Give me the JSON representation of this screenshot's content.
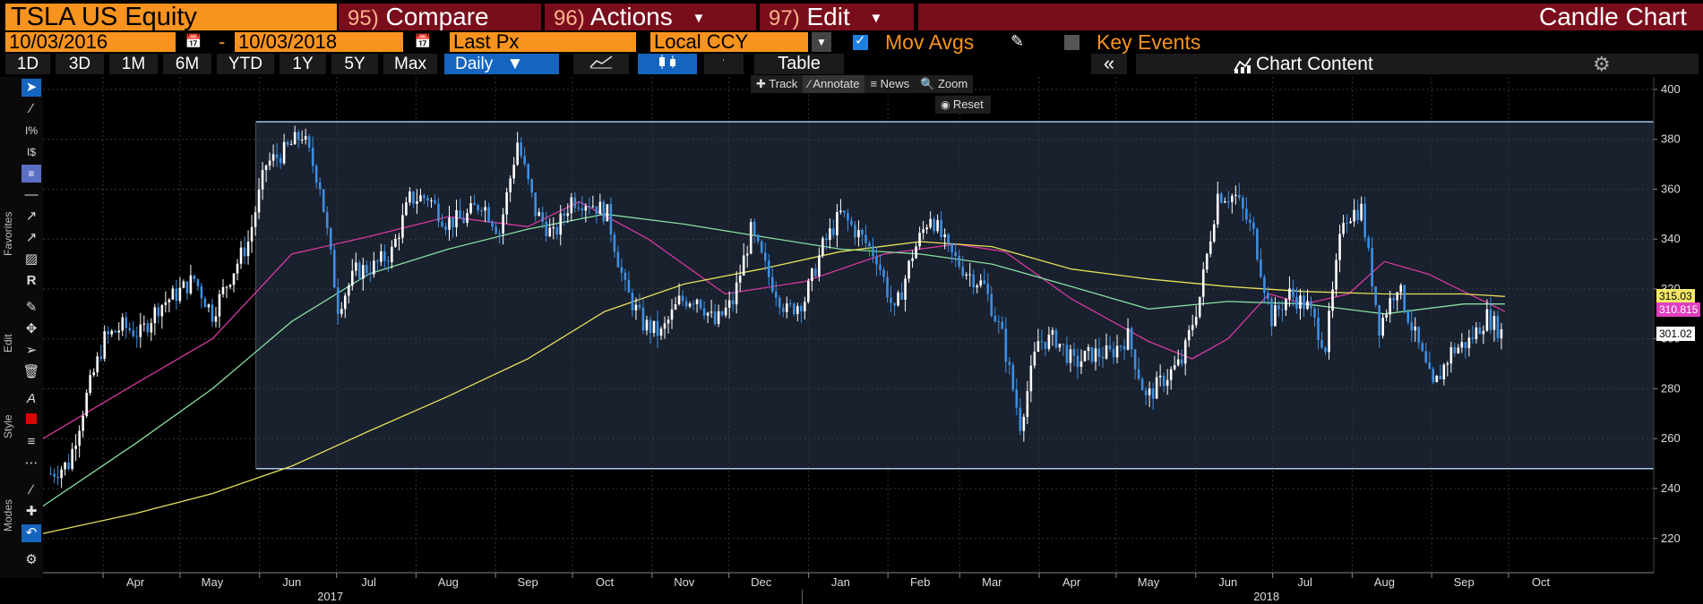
{
  "header": {
    "ticker": "TSLA US Equity",
    "compare_num": "95)",
    "compare_label": "Compare",
    "actions_num": "96)",
    "actions_label": "Actions",
    "edit_num": "97)",
    "edit_label": "Edit",
    "chart_type": "Candle Chart"
  },
  "controls": {
    "start_date": "10/03/2016",
    "date_separator": "-",
    "end_date": "10/03/2018",
    "field": "Last Px",
    "currency": "Local CCY",
    "mov_avgs_label": "Mov Avgs",
    "mov_avgs_checked": true,
    "key_events_label": "Key Events",
    "key_events_checked": false
  },
  "periods": [
    "1D",
    "3D",
    "1M",
    "6M",
    "YTD",
    "1Y",
    "5Y",
    "Max"
  ],
  "frequency": "Daily",
  "table_label": "Table",
  "chart_content_label": "Chart Content",
  "mini_toolbar": {
    "track": "Track",
    "annotate": "Annotate",
    "news": "News",
    "zoom": "Zoom",
    "reset": "Reset"
  },
  "left_toolbar": {
    "groups": [
      "Favorites",
      "Edit",
      "Style",
      "Modes"
    ]
  },
  "price_tags": {
    "ma_top": "315.03",
    "ma_magenta": "310.815",
    "last": "301.02"
  },
  "colors": {
    "orange": "#f7931e",
    "title_red": "#7a0d1c",
    "active_blue": "#1565c0",
    "up_candle": "#ffffff",
    "down_candle": "#3d8fe0",
    "ma_short": "#d63aa0",
    "ma_mid": "#86e0a0",
    "ma_long": "#e6e05a",
    "channel": "#a8c4ec",
    "yellow_tag": "#f2e86a",
    "magenta_tag": "#e040c0"
  },
  "chart_data": {
    "type": "candlestick",
    "title": "",
    "xlabel": "",
    "ylabel": "",
    "ylim": [
      207,
      405
    ],
    "y_ticks": [
      220,
      240,
      260,
      280,
      300,
      320,
      340,
      360,
      380,
      400
    ],
    "x_range": [
      "2017-03-10",
      "2018-11-28"
    ],
    "x_ticks": [
      {
        "date": "2017-04-15",
        "label": "Apr"
      },
      {
        "date": "2017-05-15",
        "label": "May"
      },
      {
        "date": "2017-06-15",
        "label": "Jun"
      },
      {
        "date": "2017-07-15",
        "label": "Jul"
      },
      {
        "date": "2017-08-15",
        "label": "Aug"
      },
      {
        "date": "2017-09-15",
        "label": "Sep"
      },
      {
        "date": "2017-10-15",
        "label": "Oct"
      },
      {
        "date": "2017-11-15",
        "label": "Nov"
      },
      {
        "date": "2017-12-15",
        "label": "Dec"
      },
      {
        "date": "2018-01-15",
        "label": "Jan"
      },
      {
        "date": "2018-02-15",
        "label": "Feb"
      },
      {
        "date": "2018-03-15",
        "label": "Mar"
      },
      {
        "date": "2018-04-15",
        "label": "Apr"
      },
      {
        "date": "2018-05-15",
        "label": "May"
      },
      {
        "date": "2018-06-15",
        "label": "Jun"
      },
      {
        "date": "2018-07-15",
        "label": "Jul"
      },
      {
        "date": "2018-08-15",
        "label": "Aug"
      },
      {
        "date": "2018-09-15",
        "label": "Sep"
      },
      {
        "date": "2018-10-15",
        "label": "Oct"
      }
    ],
    "year_labels": [
      {
        "date": "2017-06-30",
        "label": "2017"
      },
      {
        "date": "2018-06-30",
        "label": "2018"
      }
    ],
    "grid": true,
    "channel": {
      "start": "2017-06-01",
      "end": "2018-11-28",
      "upper": 387,
      "lower": 248
    },
    "close_series": [
      {
        "date": "2017-03-13",
        "close": 246
      },
      {
        "date": "2017-03-20",
        "close": 250
      },
      {
        "date": "2017-03-27",
        "close": 277
      },
      {
        "date": "2017-04-03",
        "close": 300
      },
      {
        "date": "2017-04-10",
        "close": 305
      },
      {
        "date": "2017-04-17",
        "close": 302
      },
      {
        "date": "2017-04-24",
        "close": 313
      },
      {
        "date": "2017-05-01",
        "close": 318
      },
      {
        "date": "2017-05-08",
        "close": 324
      },
      {
        "date": "2017-05-15",
        "close": 310
      },
      {
        "date": "2017-05-22",
        "close": 325
      },
      {
        "date": "2017-05-29",
        "close": 339
      },
      {
        "date": "2017-06-05",
        "close": 370
      },
      {
        "date": "2017-06-12",
        "close": 375
      },
      {
        "date": "2017-06-19",
        "close": 382
      },
      {
        "date": "2017-06-26",
        "close": 362
      },
      {
        "date": "2017-07-03",
        "close": 313
      },
      {
        "date": "2017-07-10",
        "close": 327
      },
      {
        "date": "2017-07-17",
        "close": 329
      },
      {
        "date": "2017-07-24",
        "close": 335
      },
      {
        "date": "2017-07-31",
        "close": 356
      },
      {
        "date": "2017-08-07",
        "close": 357
      },
      {
        "date": "2017-08-14",
        "close": 347
      },
      {
        "date": "2017-08-21",
        "close": 348
      },
      {
        "date": "2017-08-28",
        "close": 355
      },
      {
        "date": "2017-09-04",
        "close": 343
      },
      {
        "date": "2017-09-11",
        "close": 379
      },
      {
        "date": "2017-09-18",
        "close": 351
      },
      {
        "date": "2017-09-25",
        "close": 341
      },
      {
        "date": "2017-10-02",
        "close": 356
      },
      {
        "date": "2017-10-09",
        "close": 355
      },
      {
        "date": "2017-10-16",
        "close": 350
      },
      {
        "date": "2017-10-23",
        "close": 320
      },
      {
        "date": "2017-10-30",
        "close": 306
      },
      {
        "date": "2017-11-06",
        "close": 302
      },
      {
        "date": "2017-11-13",
        "close": 315
      },
      {
        "date": "2017-11-20",
        "close": 317
      },
      {
        "date": "2017-11-27",
        "close": 306
      },
      {
        "date": "2017-12-04",
        "close": 315
      },
      {
        "date": "2017-12-11",
        "close": 343
      },
      {
        "date": "2017-12-18",
        "close": 325
      },
      {
        "date": "2017-12-25",
        "close": 311
      },
      {
        "date": "2018-01-01",
        "close": 316
      },
      {
        "date": "2018-01-08",
        "close": 337
      },
      {
        "date": "2018-01-15",
        "close": 350
      },
      {
        "date": "2018-01-22",
        "close": 342
      },
      {
        "date": "2018-01-29",
        "close": 333
      },
      {
        "date": "2018-02-05",
        "close": 310
      },
      {
        "date": "2018-02-12",
        "close": 334
      },
      {
        "date": "2018-02-19",
        "close": 350
      },
      {
        "date": "2018-02-26",
        "close": 335
      },
      {
        "date": "2018-03-05",
        "close": 327
      },
      {
        "date": "2018-03-12",
        "close": 321
      },
      {
        "date": "2018-03-19",
        "close": 301
      },
      {
        "date": "2018-03-26",
        "close": 266
      },
      {
        "date": "2018-04-02",
        "close": 299
      },
      {
        "date": "2018-04-09",
        "close": 300
      },
      {
        "date": "2018-04-16",
        "close": 290
      },
      {
        "date": "2018-04-23",
        "close": 294
      },
      {
        "date": "2018-04-30",
        "close": 294
      },
      {
        "date": "2018-05-07",
        "close": 301
      },
      {
        "date": "2018-05-14",
        "close": 276
      },
      {
        "date": "2018-05-21",
        "close": 284
      },
      {
        "date": "2018-05-28",
        "close": 291
      },
      {
        "date": "2018-06-04",
        "close": 317
      },
      {
        "date": "2018-06-11",
        "close": 358
      },
      {
        "date": "2018-06-18",
        "close": 357
      },
      {
        "date": "2018-06-25",
        "close": 342
      },
      {
        "date": "2018-07-02",
        "close": 308
      },
      {
        "date": "2018-07-09",
        "close": 318
      },
      {
        "date": "2018-07-16",
        "close": 313
      },
      {
        "date": "2018-07-23",
        "close": 297
      },
      {
        "date": "2018-07-30",
        "close": 349
      },
      {
        "date": "2018-08-06",
        "close": 352
      },
      {
        "date": "2018-08-13",
        "close": 305
      },
      {
        "date": "2018-08-20",
        "close": 322
      },
      {
        "date": "2018-08-27",
        "close": 301
      },
      {
        "date": "2018-09-03",
        "close": 280
      },
      {
        "date": "2018-09-10",
        "close": 295
      },
      {
        "date": "2018-09-17",
        "close": 299
      },
      {
        "date": "2018-09-24",
        "close": 309
      },
      {
        "date": "2018-10-01",
        "close": 301
      }
    ],
    "moving_averages": [
      {
        "color": "#d63aa0",
        "points": [
          {
            "date": "2017-03-10",
            "close": 260
          },
          {
            "date": "2017-04-15",
            "close": 282
          },
          {
            "date": "2017-05-15",
            "close": 300
          },
          {
            "date": "2017-06-15",
            "close": 334
          },
          {
            "date": "2017-07-15",
            "close": 341
          },
          {
            "date": "2017-08-15",
            "close": 349
          },
          {
            "date": "2017-09-15",
            "close": 345
          },
          {
            "date": "2017-10-05",
            "close": 355
          },
          {
            "date": "2017-11-01",
            "close": 340
          },
          {
            "date": "2017-12-01",
            "close": 318
          },
          {
            "date": "2018-01-01",
            "close": 323
          },
          {
            "date": "2018-02-01",
            "close": 334
          },
          {
            "date": "2018-03-01",
            "close": 338
          },
          {
            "date": "2018-03-20",
            "close": 335
          },
          {
            "date": "2018-04-15",
            "close": 316
          },
          {
            "date": "2018-05-15",
            "close": 299
          },
          {
            "date": "2018-06-01",
            "close": 292
          },
          {
            "date": "2018-06-15",
            "close": 300
          },
          {
            "date": "2018-07-01",
            "close": 318
          },
          {
            "date": "2018-07-15",
            "close": 314
          },
          {
            "date": "2018-08-01",
            "close": 318
          },
          {
            "date": "2018-08-15",
            "close": 331
          },
          {
            "date": "2018-09-01",
            "close": 326
          },
          {
            "date": "2018-09-15",
            "close": 319
          },
          {
            "date": "2018-10-01",
            "close": 311
          }
        ]
      },
      {
        "color": "#86e0a0",
        "points": [
          {
            "date": "2017-03-10",
            "close": 233
          },
          {
            "date": "2017-04-15",
            "close": 258
          },
          {
            "date": "2017-05-15",
            "close": 280
          },
          {
            "date": "2017-06-15",
            "close": 307
          },
          {
            "date": "2017-07-15",
            "close": 326
          },
          {
            "date": "2017-08-15",
            "close": 336
          },
          {
            "date": "2017-09-15",
            "close": 344
          },
          {
            "date": "2017-10-15",
            "close": 350
          },
          {
            "date": "2017-11-15",
            "close": 346
          },
          {
            "date": "2017-12-15",
            "close": 341
          },
          {
            "date": "2018-01-15",
            "close": 336
          },
          {
            "date": "2018-02-15",
            "close": 334
          },
          {
            "date": "2018-03-15",
            "close": 330
          },
          {
            "date": "2018-04-15",
            "close": 321
          },
          {
            "date": "2018-05-15",
            "close": 312
          },
          {
            "date": "2018-06-15",
            "close": 315
          },
          {
            "date": "2018-07-15",
            "close": 314
          },
          {
            "date": "2018-08-15",
            "close": 310
          },
          {
            "date": "2018-09-15",
            "close": 314
          },
          {
            "date": "2018-10-01",
            "close": 314
          }
        ]
      },
      {
        "color": "#e6e05a",
        "points": [
          {
            "date": "2017-03-10",
            "close": 222
          },
          {
            "date": "2017-04-15",
            "close": 230
          },
          {
            "date": "2017-05-15",
            "close": 238
          },
          {
            "date": "2017-06-15",
            "close": 249
          },
          {
            "date": "2017-07-15",
            "close": 263
          },
          {
            "date": "2017-08-15",
            "close": 277
          },
          {
            "date": "2017-09-15",
            "close": 292
          },
          {
            "date": "2017-10-15",
            "close": 311
          },
          {
            "date": "2017-11-15",
            "close": 322
          },
          {
            "date": "2017-12-15",
            "close": 328
          },
          {
            "date": "2018-01-15",
            "close": 335
          },
          {
            "date": "2018-02-15",
            "close": 339
          },
          {
            "date": "2018-03-15",
            "close": 337
          },
          {
            "date": "2018-04-15",
            "close": 328
          },
          {
            "date": "2018-05-15",
            "close": 324
          },
          {
            "date": "2018-06-15",
            "close": 321
          },
          {
            "date": "2018-07-15",
            "close": 319
          },
          {
            "date": "2018-08-15",
            "close": 318
          },
          {
            "date": "2018-09-15",
            "close": 318
          },
          {
            "date": "2018-10-01",
            "close": 317
          }
        ]
      }
    ]
  }
}
